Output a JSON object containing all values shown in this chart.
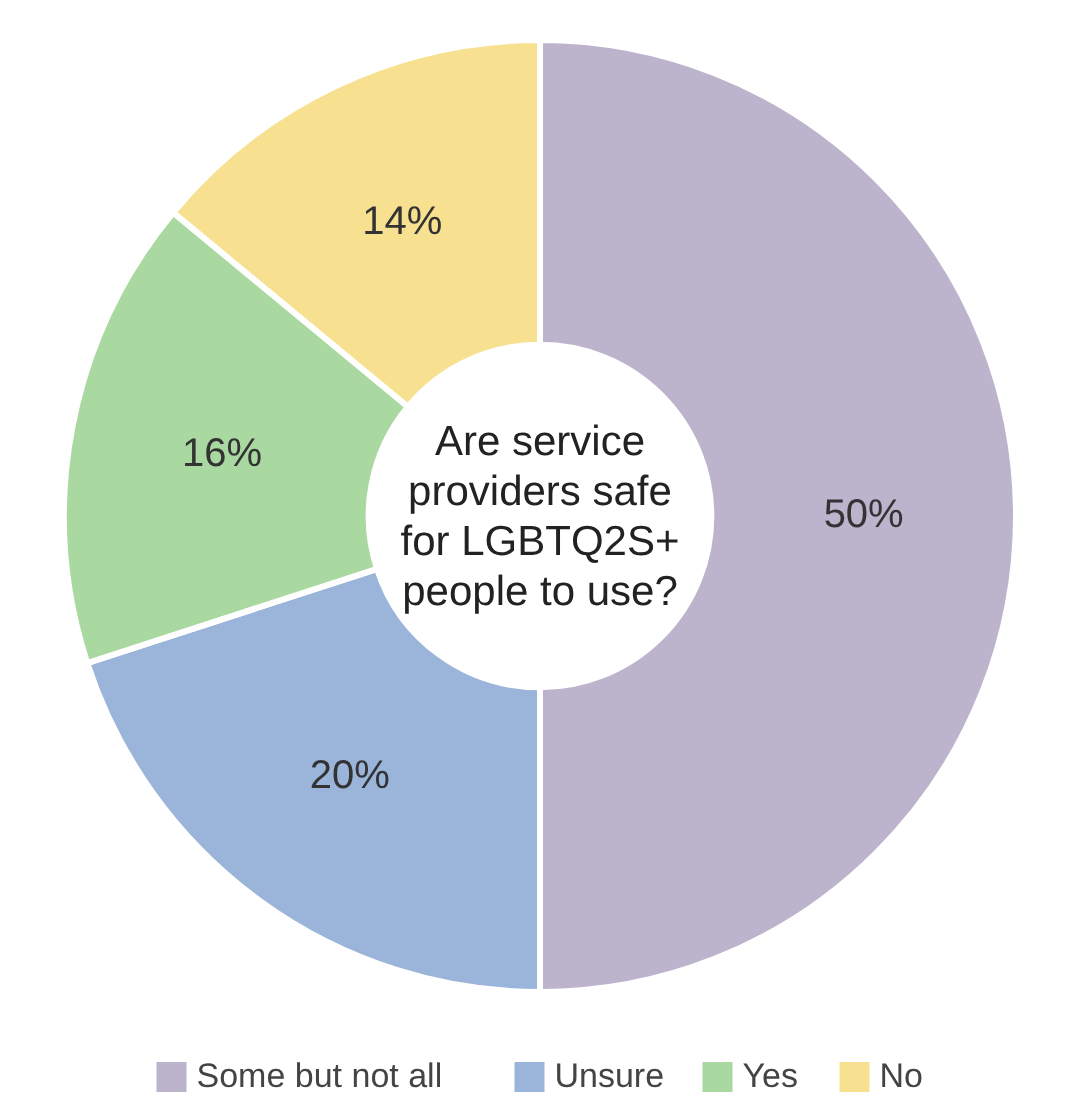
{
  "chart_data": {
    "type": "donut",
    "title": "Are service providers safe for LGBTQ2S+ people to use?",
    "categories": [
      "Some but not all",
      "Unsure",
      "Yes",
      "No"
    ],
    "values": [
      50,
      20,
      16,
      14
    ],
    "value_labels": [
      "50%",
      "20%",
      "16%",
      "14%"
    ],
    "colors": [
      "#bcb3cc",
      "#9bb4d9",
      "#a9d8a0",
      "#f7e190"
    ],
    "legend": "bottom"
  }
}
